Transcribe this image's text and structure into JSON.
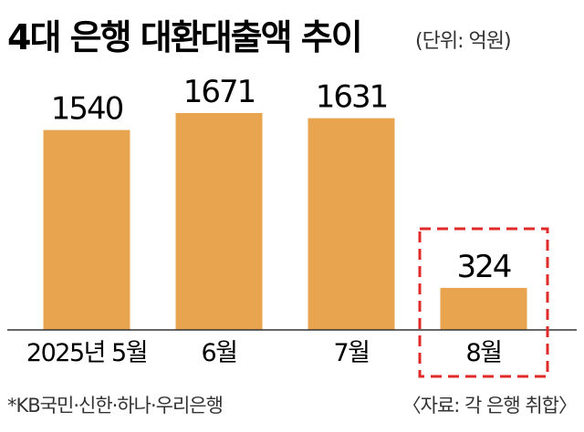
{
  "chart_data": {
    "type": "bar",
    "title": "4대 은행 대환대출액 추이",
    "unit_label": "(단위: 억원)",
    "categories": [
      "2025년 5월",
      "6월",
      "7월",
      "8월"
    ],
    "values": [
      1540,
      1671,
      1631,
      324
    ],
    "value_labels": [
      "1540",
      "1671",
      "1631",
      "324"
    ],
    "highlighted_category": "8월",
    "bar_color": "#e8a44f",
    "highlight_box_color": "#e02a2a",
    "ylim": [
      0,
      1700
    ],
    "grid": false,
    "footnote": "*KB국민·신한·하나·우리은행",
    "source": "〈자료: 각 은행 취합〉"
  }
}
